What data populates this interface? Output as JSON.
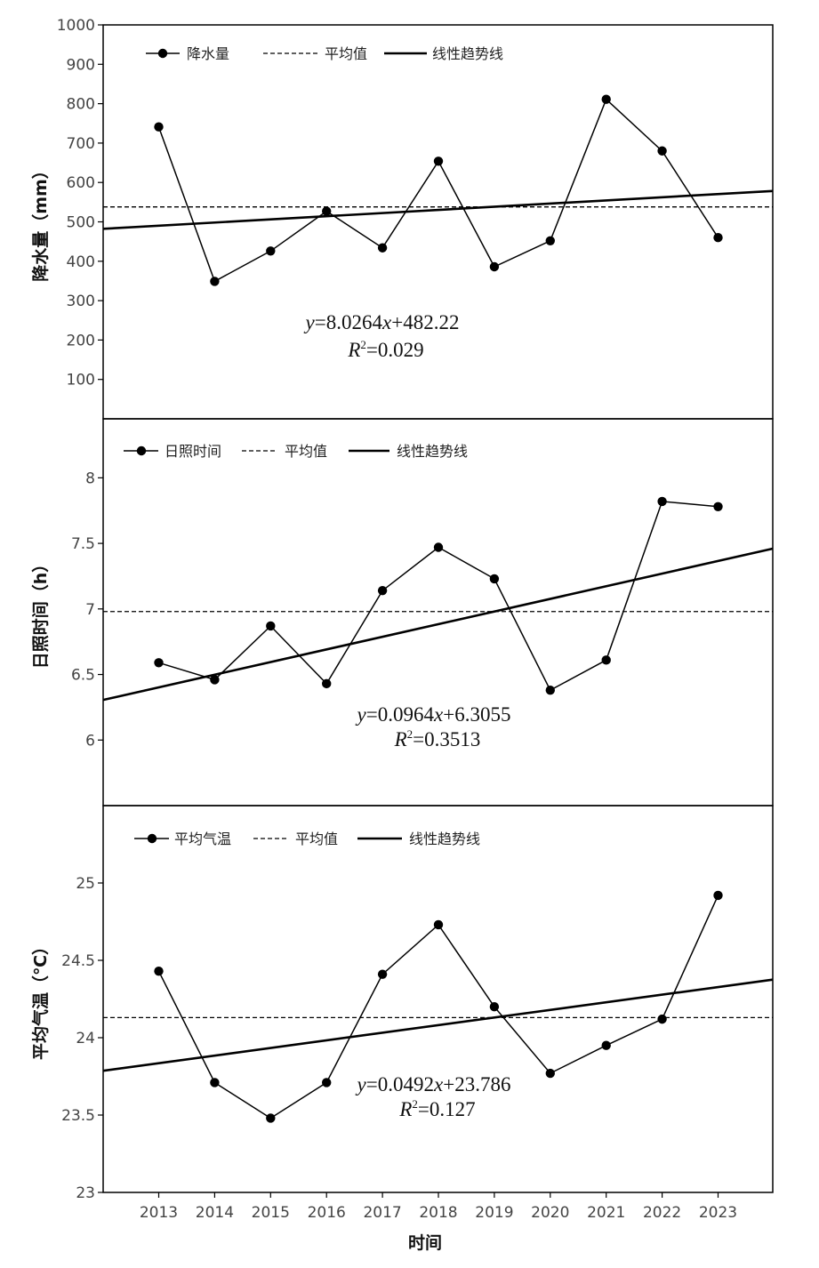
{
  "chart_data": [
    {
      "type": "line",
      "ylabel": "降水量（mm）",
      "ylim": [
        0,
        1000
      ],
      "yticks": [
        100,
        200,
        300,
        400,
        500,
        600,
        700,
        800,
        900,
        1000
      ],
      "x": [
        2013,
        2014,
        2015,
        2016,
        2017,
        2018,
        2019,
        2020,
        2021,
        2022,
        2023
      ],
      "series": [
        {
          "name": "降水量",
          "values": [
            741,
            349,
            426,
            527,
            434,
            654,
            386,
            452,
            811,
            680,
            460
          ]
        }
      ],
      "mean": 538,
      "trend": {
        "slope": 8.0264,
        "intercept": 482.22
      },
      "legend": {
        "series": "降水量",
        "mean": "平均值",
        "trend": "线性趋势线"
      },
      "equation": {
        "y_var": "y",
        "y_rest": "=8.0264",
        "x_var": "x",
        "x_rest": "+482.22",
        "r_var": "R",
        "r_sup": "2",
        "r_rest": "=0.029"
      }
    },
    {
      "type": "line",
      "ylabel": "日照时间（h）",
      "ylim": [
        5.5,
        8.45
      ],
      "yticks": [
        6,
        6.5,
        7,
        7.5,
        8
      ],
      "x": [
        2013,
        2014,
        2015,
        2016,
        2017,
        2018,
        2019,
        2020,
        2021,
        2022,
        2023
      ],
      "series": [
        {
          "name": "日照时间",
          "values": [
            6.59,
            6.46,
            6.87,
            6.43,
            7.14,
            7.47,
            7.23,
            6.38,
            6.61,
            7.82,
            7.78
          ]
        }
      ],
      "mean": 6.98,
      "trend": {
        "slope": 0.0964,
        "intercept": 6.3055
      },
      "legend": {
        "series": "日照时间",
        "mean": "平均值",
        "trend": "线性趋势线"
      },
      "equation": {
        "y_var": "y",
        "y_rest": "=0.0964",
        "x_var": "x",
        "x_rest": "+6.3055",
        "r_var": "R",
        "r_sup": "2",
        "r_rest": "=0.3513"
      }
    },
    {
      "type": "line",
      "ylabel": "平均气温（℃）",
      "xlabel": "时间",
      "ylim": [
        23,
        25.5
      ],
      "yticks": [
        23,
        23.5,
        24,
        24.5,
        25
      ],
      "ytick_labels": [
        "23",
        "23.5",
        "24",
        "24.5",
        "25"
      ],
      "x": [
        2013,
        2014,
        2015,
        2016,
        2017,
        2018,
        2019,
        2020,
        2021,
        2022,
        2023
      ],
      "series": [
        {
          "name": "平均气温",
          "values": [
            24.43,
            23.71,
            23.48,
            23.71,
            24.41,
            24.73,
            24.2,
            23.77,
            23.95,
            24.12,
            24.92
          ]
        }
      ],
      "mean": 24.13,
      "trend": {
        "slope": 0.0492,
        "intercept": 23.786
      },
      "legend": {
        "series": "平均气温",
        "mean": "平均值",
        "trend": "线性趋势线"
      },
      "equation": {
        "y_var": "y",
        "y_rest": "=0.0492",
        "x_var": "x",
        "x_rest": "+23.786",
        "r_var": "R",
        "r_sup": "2",
        "r_rest": "=0.127"
      }
    }
  ],
  "x_tick_labels": [
    "2013",
    "2014",
    "2015",
    "2016",
    "2017",
    "2018",
    "2019",
    "2020",
    "2021",
    "2022",
    "2023"
  ]
}
